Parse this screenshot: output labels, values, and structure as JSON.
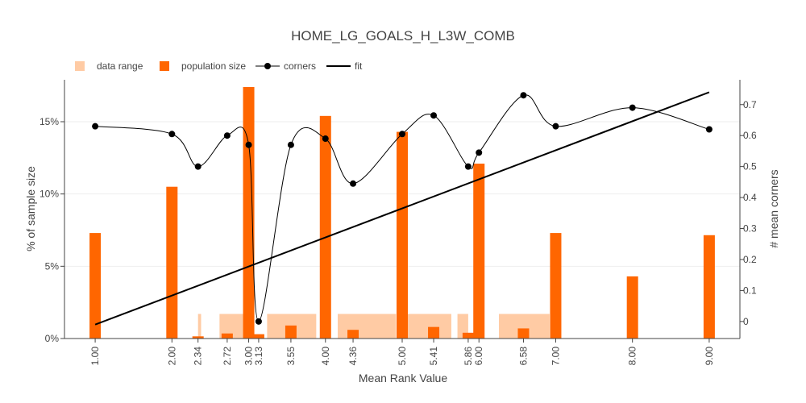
{
  "chart_data": {
    "type": "bar",
    "title": "HOME_LG_GOALS_H_L3W_COMB",
    "xlabel": "Mean Rank Value",
    "ylabel": "% of sample size",
    "y2label": "# mean corners",
    "xlim": [
      0.6,
      9.4
    ],
    "ylim": [
      0,
      17.9
    ],
    "y2lim": [
      -0.055,
      0.78
    ],
    "x_ticks": [
      1.0,
      2.0,
      2.34,
      2.72,
      3.0,
      3.13,
      3.55,
      4.0,
      4.36,
      5.0,
      5.41,
      5.86,
      6.0,
      6.58,
      7.0,
      8.0,
      9.0
    ],
    "x_tick_labels": [
      "1.00",
      "2.00",
      "2.34",
      "2.72",
      "3.00",
      "3.13",
      "3.55",
      "4.00",
      "4.36",
      "5.00",
      "5.41",
      "5.86",
      "6.00",
      "6.58",
      "7.00",
      "8.00",
      "9.00"
    ],
    "y_ticks": [
      0,
      5,
      10,
      15
    ],
    "y_tick_labels": [
      "0%",
      "5%",
      "10%",
      "15%"
    ],
    "y2_ticks": [
      0,
      0.1,
      0.2,
      0.3,
      0.4,
      0.5,
      0.6,
      0.7
    ],
    "y2_tick_labels": [
      "0",
      "0.1",
      "0.2",
      "0.3",
      "0.4",
      "0.5",
      "0.6",
      "0.7"
    ],
    "legend": {
      "placement": "top-left",
      "entries": [
        {
          "label": "data range",
          "kind": "box",
          "color": "#ffcba4"
        },
        {
          "label": "population size",
          "kind": "box",
          "color": "#ff6600"
        },
        {
          "label": "corners",
          "kind": "line-marker",
          "color": "#000000"
        },
        {
          "label": "fit",
          "kind": "line",
          "color": "#000000"
        }
      ]
    },
    "series": [
      {
        "name": "data range",
        "kind": "range",
        "color": "#ffcba4",
        "height": 1.7,
        "ranges": [
          [
            2.34,
            2.38
          ],
          [
            2.62,
            2.94
          ],
          [
            3.24,
            3.88
          ],
          [
            4.16,
            4.92
          ],
          [
            5.04,
            5.64
          ],
          [
            5.72,
            5.86
          ],
          [
            6.26,
            6.92
          ]
        ]
      },
      {
        "name": "population size",
        "kind": "bar",
        "color": "#ff6600",
        "x": [
          1.0,
          2.0,
          2.34,
          2.72,
          3.0,
          3.13,
          3.55,
          4.0,
          4.36,
          5.0,
          5.41,
          5.86,
          6.0,
          6.58,
          7.0,
          8.0,
          9.0
        ],
        "values": [
          7.3,
          10.5,
          0.15,
          0.35,
          17.4,
          0.3,
          0.9,
          15.4,
          0.6,
          14.3,
          0.8,
          0.4,
          12.1,
          0.7,
          7.3,
          4.3,
          7.15
        ]
      },
      {
        "name": "corners",
        "kind": "line-marker",
        "axis": "y2",
        "color": "#000000",
        "x": [
          1.0,
          2.0,
          2.34,
          2.72,
          3.0,
          3.13,
          3.55,
          4.0,
          4.36,
          5.0,
          5.41,
          5.86,
          6.0,
          6.58,
          7.0,
          8.0,
          9.0
        ],
        "values": [
          0.63,
          0.605,
          0.5,
          0.6,
          0.57,
          0.0,
          0.57,
          0.59,
          0.445,
          0.605,
          0.665,
          0.5,
          0.545,
          0.73,
          0.63,
          0.69,
          0.62
        ]
      },
      {
        "name": "fit",
        "kind": "line",
        "axis": "y2",
        "color": "#000000",
        "x": [
          1.0,
          9.0
        ],
        "values": [
          -0.01,
          0.74
        ]
      }
    ],
    "grid": true
  }
}
